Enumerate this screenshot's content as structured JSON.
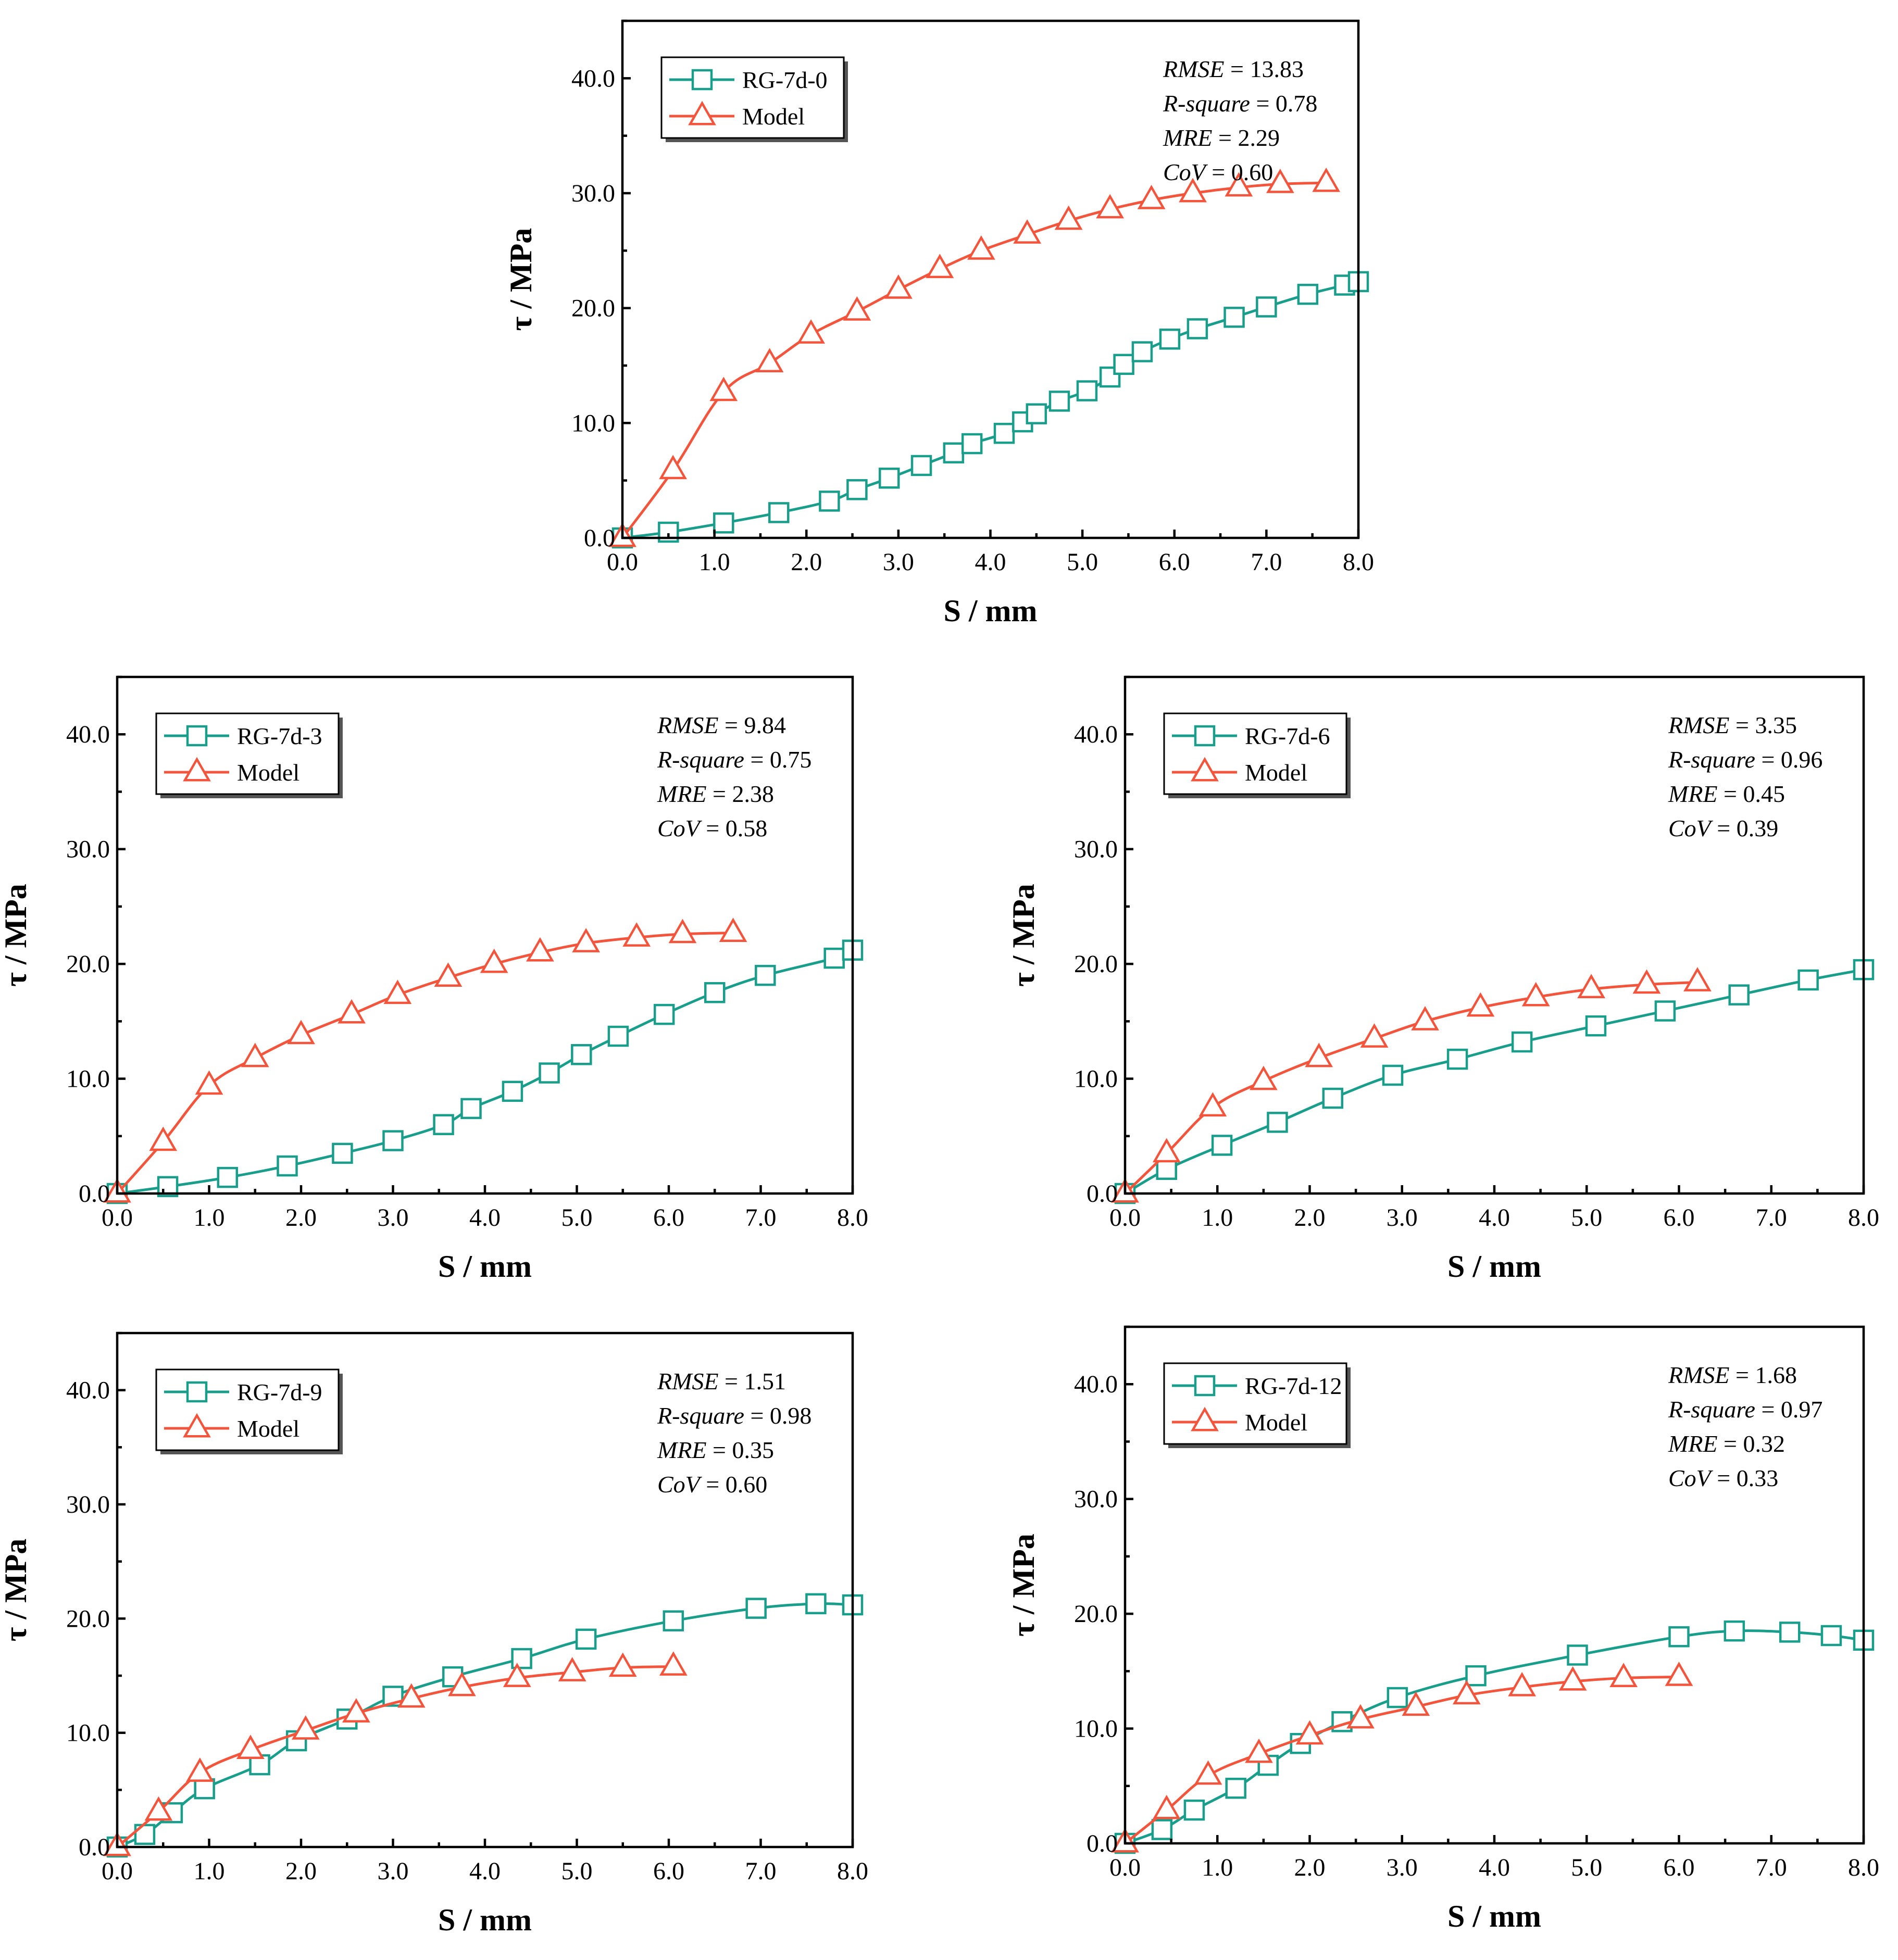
{
  "colors": {
    "test": "#1a9e8c",
    "model": "#f2553c"
  },
  "chart_data": [
    {
      "type": "line",
      "xlabel": "S / mm",
      "ylabel": "τ / MPa",
      "xlim": [
        0,
        8
      ],
      "ylim": [
        0,
        45
      ],
      "xticks": [
        "0.0",
        "1.0",
        "2.0",
        "3.0",
        "4.0",
        "5.0",
        "6.0",
        "7.0",
        "8.0"
      ],
      "yticks": [
        "0.0",
        "10.0",
        "20.0",
        "30.0",
        "40.0"
      ],
      "stats": [
        {
          "name": "RMSE",
          "eq": " = ",
          "value": "13.83"
        },
        {
          "name": "R-square",
          "eq": " = ",
          "value": "0.78"
        },
        {
          "name": "MRE",
          "eq": " = ",
          "value": "2.29"
        },
        {
          "name": "CoV",
          "eq": " = ",
          "value": "0.60"
        }
      ],
      "series": [
        {
          "name": "RG-7d-0",
          "role": "test",
          "marker": "square",
          "x": [
            0,
            0.5,
            1.1,
            1.7,
            2.25,
            2.55,
            2.9,
            3.25,
            3.6,
            3.8,
            4.15,
            4.35,
            4.5,
            4.75,
            5.05,
            5.3,
            5.45,
            5.65,
            5.95,
            6.25,
            6.65,
            7.0,
            7.45,
            7.85,
            8.0
          ],
          "y": [
            0,
            0.5,
            1.3,
            2.2,
            3.2,
            4.2,
            5.2,
            6.3,
            7.4,
            8.2,
            9.1,
            10.1,
            10.8,
            11.9,
            12.8,
            14.0,
            15.1,
            16.2,
            17.3,
            18.2,
            19.2,
            20.1,
            21.2,
            22.0,
            22.3
          ]
        },
        {
          "name": "Model",
          "role": "model",
          "marker": "triangle",
          "x": [
            0,
            0.55,
            1.1,
            1.6,
            2.05,
            2.55,
            3.0,
            3.45,
            3.9,
            4.4,
            4.85,
            5.3,
            5.75,
            6.2,
            6.7,
            7.15,
            7.65
          ],
          "y": [
            0,
            5.9,
            12.7,
            15.2,
            17.7,
            19.7,
            21.6,
            23.4,
            25.0,
            26.4,
            27.6,
            28.6,
            29.4,
            30.0,
            30.5,
            30.8,
            30.9
          ]
        }
      ]
    },
    {
      "type": "line",
      "xlabel": "S / mm",
      "ylabel": "τ / MPa",
      "xlim": [
        0,
        8
      ],
      "ylim": [
        0,
        45
      ],
      "xticks": [
        "0.0",
        "1.0",
        "2.0",
        "3.0",
        "4.0",
        "5.0",
        "6.0",
        "7.0",
        "8.0"
      ],
      "yticks": [
        "0.0",
        "10.0",
        "20.0",
        "30.0",
        "40.0"
      ],
      "stats": [
        {
          "name": "RMSE",
          "eq": " = ",
          "value": "9.84"
        },
        {
          "name": "R-square",
          "eq": " = ",
          "value": "0.75"
        },
        {
          "name": "MRE",
          "eq": " = ",
          "value": "2.38"
        },
        {
          "name": "CoV",
          "eq": " = ",
          "value": "0.58"
        }
      ],
      "series": [
        {
          "name": "RG-7d-3",
          "role": "test",
          "marker": "square",
          "x": [
            0,
            0.55,
            1.2,
            1.85,
            2.45,
            3.0,
            3.55,
            3.85,
            4.3,
            4.7,
            5.05,
            5.45,
            5.95,
            6.5,
            7.05,
            7.8,
            8.0
          ],
          "y": [
            0,
            0.6,
            1.4,
            2.4,
            3.5,
            4.6,
            6.0,
            7.4,
            8.9,
            10.5,
            12.1,
            13.7,
            15.6,
            17.5,
            19.0,
            20.5,
            21.2
          ]
        },
        {
          "name": "Model",
          "role": "model",
          "marker": "triangle",
          "x": [
            0,
            0.5,
            1.0,
            1.5,
            2.0,
            2.55,
            3.05,
            3.6,
            4.1,
            4.6,
            5.1,
            5.65,
            6.15,
            6.7
          ],
          "y": [
            0,
            4.5,
            9.4,
            11.8,
            13.8,
            15.6,
            17.3,
            18.8,
            20.0,
            21.0,
            21.8,
            22.3,
            22.6,
            22.7
          ]
        }
      ]
    },
    {
      "type": "line",
      "xlabel": "S / mm",
      "ylabel": "τ / MPa",
      "xlim": [
        0,
        8
      ],
      "ylim": [
        0,
        45
      ],
      "xticks": [
        "0.0",
        "1.0",
        "2.0",
        "3.0",
        "4.0",
        "5.0",
        "6.0",
        "7.0",
        "8.0"
      ],
      "yticks": [
        "0.0",
        "10.0",
        "20.0",
        "30.0",
        "40.0"
      ],
      "stats": [
        {
          "name": "RMSE",
          "eq": " = ",
          "value": "3.35"
        },
        {
          "name": "R-square",
          "eq": " = ",
          "value": "0.96"
        },
        {
          "name": "MRE",
          "eq": " = ",
          "value": "0.45"
        },
        {
          "name": "CoV",
          "eq": " = ",
          "value": "0.39"
        }
      ],
      "series": [
        {
          "name": "RG-7d-6",
          "role": "test",
          "marker": "square",
          "x": [
            0,
            0.45,
            1.05,
            1.65,
            2.25,
            2.9,
            3.6,
            4.3,
            5.1,
            5.85,
            6.65,
            7.4,
            8.0
          ],
          "y": [
            0,
            2.1,
            4.2,
            6.2,
            8.3,
            10.3,
            11.7,
            13.2,
            14.6,
            15.9,
            17.3,
            18.6,
            19.5
          ]
        },
        {
          "name": "Model",
          "role": "model",
          "marker": "triangle",
          "x": [
            0,
            0.45,
            0.95,
            1.5,
            2.1,
            2.7,
            3.25,
            3.85,
            4.45,
            5.05,
            5.65,
            6.2
          ],
          "y": [
            0,
            3.5,
            7.5,
            9.8,
            11.8,
            13.5,
            15.0,
            16.2,
            17.1,
            17.8,
            18.2,
            18.4
          ]
        }
      ]
    },
    {
      "type": "line",
      "xlabel": "S / mm",
      "ylabel": "τ / MPa",
      "xlim": [
        0,
        8
      ],
      "ylim": [
        0,
        45
      ],
      "xticks": [
        "0.0",
        "1.0",
        "2.0",
        "3.0",
        "4.0",
        "5.0",
        "6.0",
        "7.0",
        "8.0"
      ],
      "yticks": [
        "0.0",
        "10.0",
        "20.0",
        "30.0",
        "40.0"
      ],
      "stats": [
        {
          "name": "RMSE",
          "eq": " = ",
          "value": "1.51"
        },
        {
          "name": "R-square",
          "eq": " = ",
          "value": "0.98"
        },
        {
          "name": "MRE",
          "eq": " = ",
          "value": "0.35"
        },
        {
          "name": "CoV",
          "eq": " = ",
          "value": "0.60"
        }
      ],
      "series": [
        {
          "name": "RG-7d-9",
          "role": "test",
          "marker": "square",
          "x": [
            0,
            0.3,
            0.6,
            0.95,
            1.55,
            1.95,
            2.5,
            3.0,
            3.65,
            4.4,
            5.1,
            6.05,
            6.95,
            7.6,
            8.0
          ],
          "y": [
            0,
            1.1,
            3.0,
            5.1,
            7.2,
            9.3,
            11.2,
            13.2,
            14.9,
            16.5,
            18.2,
            19.8,
            20.9,
            21.3,
            21.2
          ]
        },
        {
          "name": "Model",
          "role": "model",
          "marker": "triangle",
          "x": [
            0,
            0.45,
            0.9,
            1.45,
            2.05,
            2.6,
            3.2,
            3.75,
            4.35,
            4.95,
            5.5,
            6.05
          ],
          "y": [
            0,
            3.1,
            6.5,
            8.5,
            10.2,
            11.7,
            13.0,
            14.0,
            14.8,
            15.3,
            15.7,
            15.8
          ]
        }
      ]
    },
    {
      "type": "line",
      "xlabel": "S / mm",
      "ylabel": "τ / MPa",
      "xlim": [
        0,
        8
      ],
      "ylim": [
        0,
        45
      ],
      "xticks": [
        "0.0",
        "1.0",
        "2.0",
        "3.0",
        "4.0",
        "5.0",
        "6.0",
        "7.0",
        "8.0"
      ],
      "yticks": [
        "0.0",
        "10.0",
        "20.0",
        "30.0",
        "40.0"
      ],
      "stats": [
        {
          "name": "RMSE",
          "eq": " = ",
          "value": "1.68"
        },
        {
          "name": "R-square",
          "eq": " = ",
          "value": "0.97"
        },
        {
          "name": "MRE",
          "eq": " = ",
          "value": "0.32"
        },
        {
          "name": "CoV",
          "eq": " = ",
          "value": "0.33"
        }
      ],
      "series": [
        {
          "name": "RG-7d-12",
          "role": "test",
          "marker": "square",
          "x": [
            0,
            0.4,
            0.75,
            1.2,
            1.55,
            1.9,
            2.35,
            2.95,
            3.8,
            4.9,
            6.0,
            6.6,
            7.2,
            7.65,
            8.0
          ],
          "y": [
            0,
            1.2,
            2.9,
            4.8,
            6.8,
            8.7,
            10.6,
            12.7,
            14.6,
            16.4,
            18.0,
            18.5,
            18.4,
            18.1,
            17.7
          ]
        },
        {
          "name": "Model",
          "role": "model",
          "marker": "triangle",
          "x": [
            0,
            0.45,
            0.9,
            1.45,
            2.0,
            2.55,
            3.15,
            3.7,
            4.3,
            4.85,
            5.4,
            6.0
          ],
          "y": [
            0,
            2.9,
            5.9,
            7.8,
            9.4,
            10.8,
            11.9,
            12.9,
            13.6,
            14.1,
            14.4,
            14.5
          ]
        }
      ]
    }
  ]
}
